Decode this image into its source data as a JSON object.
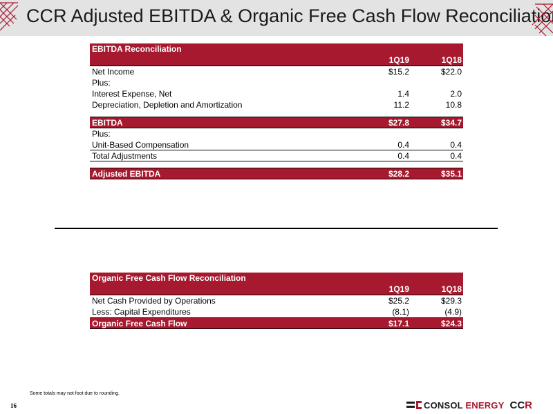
{
  "header": {
    "title": "CCR Adjusted EBITDA & Organic Free Cash Flow Reconciliations"
  },
  "ebitda_table": {
    "title": "EBITDA Reconciliation",
    "col_a": "1Q19",
    "col_b": "1Q18",
    "rows_top": [
      {
        "label": "Net Income",
        "a": "$15.2",
        "b": "$22.0"
      },
      {
        "label": "Plus:",
        "a": "",
        "b": ""
      },
      {
        "label": "Interest Expense, Net",
        "a": "1.4",
        "b": "2.0"
      },
      {
        "label": "Depreciation, Depletion and Amortization",
        "a": "11.2",
        "b": "10.8"
      }
    ],
    "ebitda": {
      "label": "EBITDA",
      "a": "$27.8",
      "b": "$34.7"
    },
    "rows_mid": [
      {
        "label": "Plus:",
        "a": "",
        "b": ""
      },
      {
        "label": "Unit-Based Compensation",
        "a": "0.4",
        "b": "0.4"
      },
      {
        "label": "Total Adjustments",
        "a": "0.4",
        "b": "0.4"
      }
    ],
    "adjusted": {
      "label": "Adjusted EBITDA",
      "a": "$28.2",
      "b": "$35.1"
    }
  },
  "fcf_table": {
    "title": "Organic Free Cash Flow Reconciliation",
    "col_a": "1Q19",
    "col_b": "1Q18",
    "rows": [
      {
        "label": "Net Cash Provided by Operations",
        "a": "$25.2",
        "b": "$29.3"
      },
      {
        "label": "Less: Capital Expenditures",
        "a": "(8.1)",
        "b": "(4.9)"
      }
    ],
    "total": {
      "label": "Organic Free Cash Flow",
      "a": "$17.1",
      "b": "$24.3"
    }
  },
  "footer": {
    "footnote": "Some totals may not foot due to rounding.",
    "page_number": "16",
    "logo_text_a": "CONSOL",
    "logo_text_b": "ENERGY",
    "ccr_logo_a": "CC",
    "ccr_logo_b": "R"
  },
  "colors": {
    "brand_red": "#a6192e",
    "title_bar": "#e3e3e3"
  }
}
